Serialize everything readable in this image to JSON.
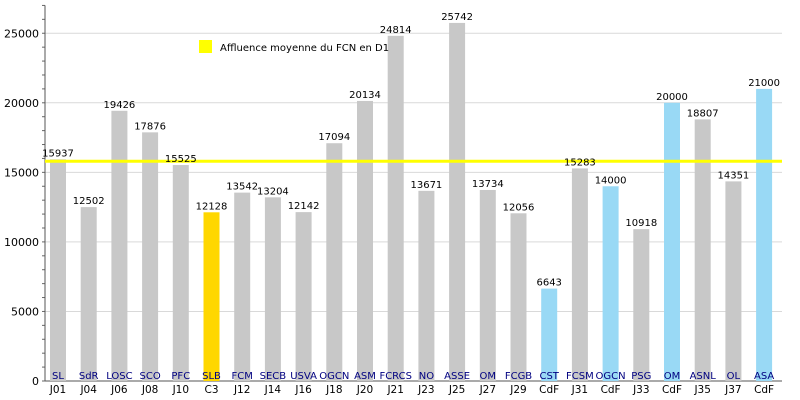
{
  "chart_data": {
    "type": "bar",
    "ylim": [
      0,
      27000
    ],
    "yticks": [
      0,
      5000,
      10000,
      15000,
      20000,
      25000
    ],
    "grid": true,
    "legend": {
      "position": "top-left",
      "label": "Affluence moyenne du FCN en D1",
      "color": "#ffff00"
    },
    "average_line": {
      "value": 15800,
      "color": "#ffff00"
    },
    "colors": {
      "league": "#c8c8c8",
      "coupe_ligue": "#ffd700",
      "coupe_france": "#99d9f5"
    },
    "bars": [
      {
        "team": "SL",
        "day": "J01",
        "value": 15937,
        "kind": "league"
      },
      {
        "team": "SdR",
        "day": "J04",
        "value": 12502,
        "kind": "league"
      },
      {
        "team": "LOSC",
        "day": "J06",
        "value": 19426,
        "kind": "league"
      },
      {
        "team": "SCO",
        "day": "J08",
        "value": 17876,
        "kind": "league"
      },
      {
        "team": "PFC",
        "day": "J10",
        "value": 15525,
        "kind": "league"
      },
      {
        "team": "SLB",
        "day": "C3",
        "value": 12128,
        "kind": "coupe_ligue"
      },
      {
        "team": "FCM",
        "day": "J12",
        "value": 13542,
        "kind": "league"
      },
      {
        "team": "SECB",
        "day": "J14",
        "value": 13204,
        "kind": "league"
      },
      {
        "team": "USVA",
        "day": "J16",
        "value": 12142,
        "kind": "league"
      },
      {
        "team": "OGCN",
        "day": "J18",
        "value": 17094,
        "kind": "league"
      },
      {
        "team": "ASM",
        "day": "J20",
        "value": 20134,
        "kind": "league"
      },
      {
        "team": "FCRCS",
        "day": "J21",
        "value": 24814,
        "kind": "league"
      },
      {
        "team": "NO",
        "day": "J23",
        "value": 13671,
        "kind": "league"
      },
      {
        "team": "ASSE",
        "day": "J25",
        "value": 25742,
        "kind": "league"
      },
      {
        "team": "OM",
        "day": "J27",
        "value": 13734,
        "kind": "league"
      },
      {
        "team": "FCGB",
        "day": "J29",
        "value": 12056,
        "kind": "league"
      },
      {
        "team": "CST",
        "day": "CdF",
        "value": 6643,
        "kind": "coupe_france"
      },
      {
        "team": "FCSM",
        "day": "J31",
        "value": 15283,
        "kind": "league"
      },
      {
        "team": "OGCN",
        "day": "CdF",
        "value": 14000,
        "kind": "coupe_france"
      },
      {
        "team": "PSG",
        "day": "J33",
        "value": 10918,
        "kind": "league"
      },
      {
        "team": "OM",
        "day": "CdF",
        "value": 20000,
        "kind": "coupe_france"
      },
      {
        "team": "ASNL",
        "day": "J35",
        "value": 18807,
        "kind": "league"
      },
      {
        "team": "OL",
        "day": "J37",
        "value": 14351,
        "kind": "league"
      },
      {
        "team": "ASA",
        "day": "CdF",
        "value": 21000,
        "kind": "coupe_france"
      }
    ]
  }
}
